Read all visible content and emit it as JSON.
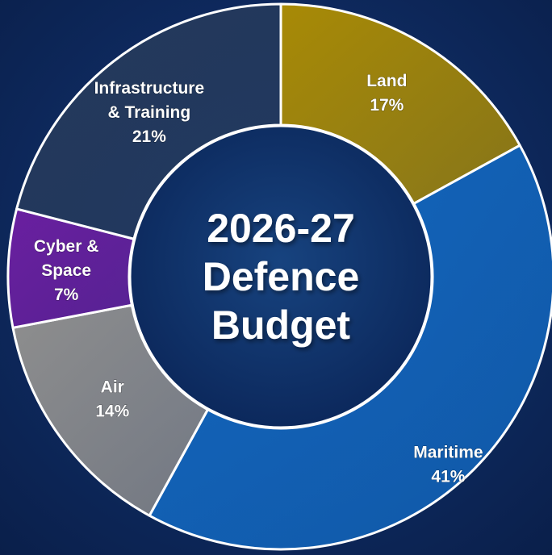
{
  "chart_data": {
    "type": "pie",
    "style": "donut",
    "title": "2026-27 Defence Budget",
    "title_lines": [
      "2026-27",
      "Defence",
      "Budget"
    ],
    "unit": "%",
    "start_angle_deg": 0,
    "direction": "clockwise",
    "slices": [
      {
        "label_lines": [
          "Land"
        ],
        "label": "Land",
        "value": 17,
        "value_text": "17%",
        "color": "#a88a06"
      },
      {
        "label_lines": [
          "Maritime"
        ],
        "label": "Maritime",
        "value": 41,
        "value_text": "41%",
        "color": "#1266bd"
      },
      {
        "label_lines": [
          "Air"
        ],
        "label": "Air",
        "value": 14,
        "value_text": "14%",
        "color": "#8e8e8e"
      },
      {
        "label_lines": [
          "Cyber &",
          "Space"
        ],
        "label": "Cyber & Space",
        "value": 7,
        "value_text": "7%",
        "color": "#6a1fa0"
      },
      {
        "label_lines": [
          "Infrastructure",
          "& Training"
        ],
        "label": "Infrastructure & Training",
        "value": 21,
        "value_text": "21%",
        "color": "#253a5c"
      }
    ],
    "hole_color": "#0d2e66",
    "separator_color": "#ffffff"
  }
}
